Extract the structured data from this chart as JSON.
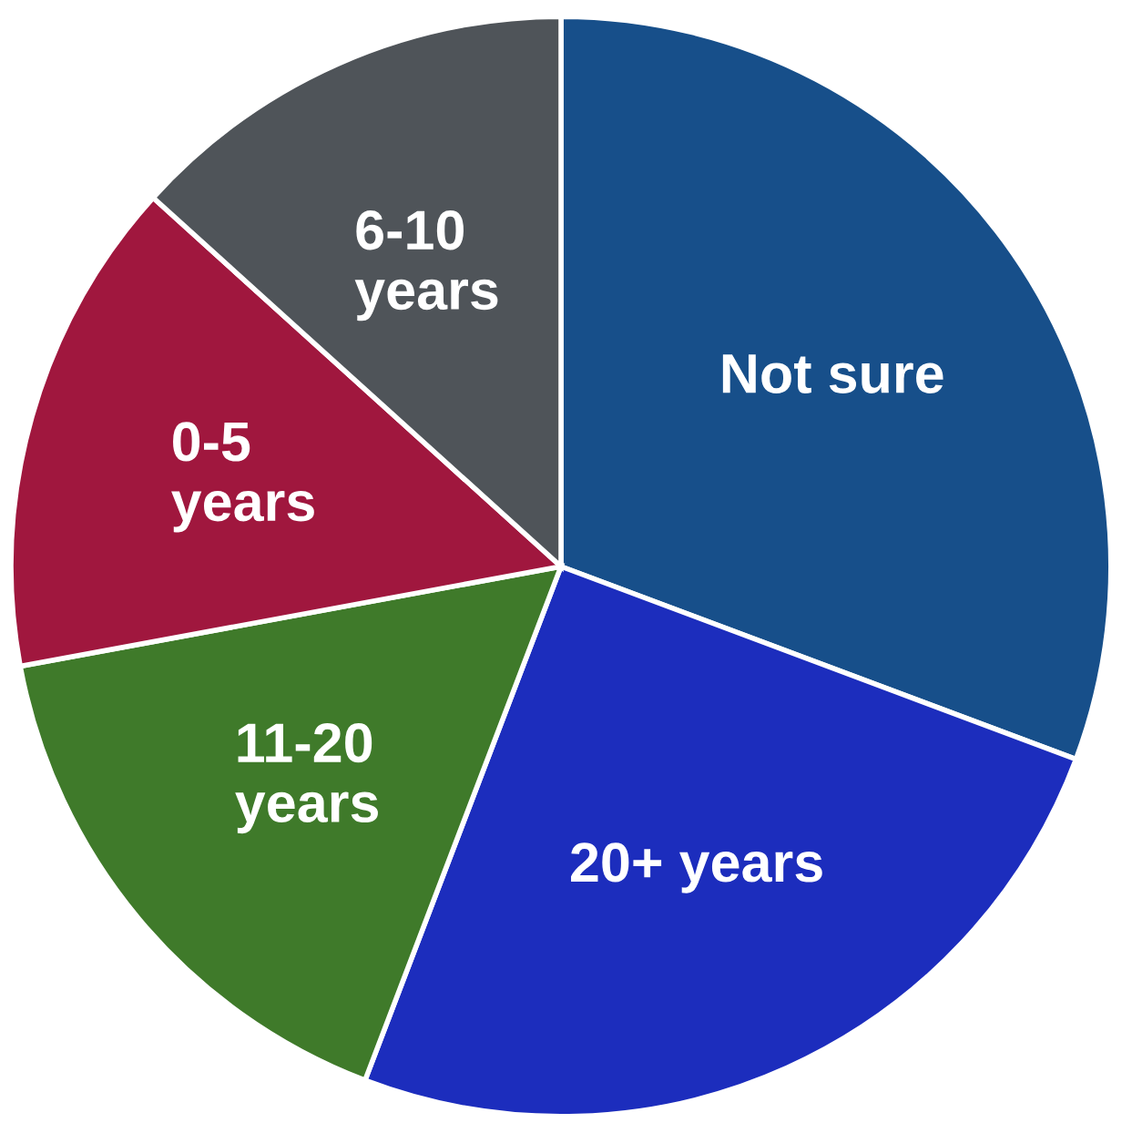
{
  "chart_data": {
    "type": "pie",
    "categories": [
      "Not sure",
      "20+ years",
      "11-20\nyears",
      "0-5\nyears",
      "6-10\nyears"
    ],
    "values": [
      30.7,
      25.1,
      16.3,
      14.6,
      13.3
    ],
    "colors": [
      "#174f8a",
      "#1c2dbd",
      "#3f7a2a",
      "#a0173e",
      "#4f5459"
    ]
  }
}
